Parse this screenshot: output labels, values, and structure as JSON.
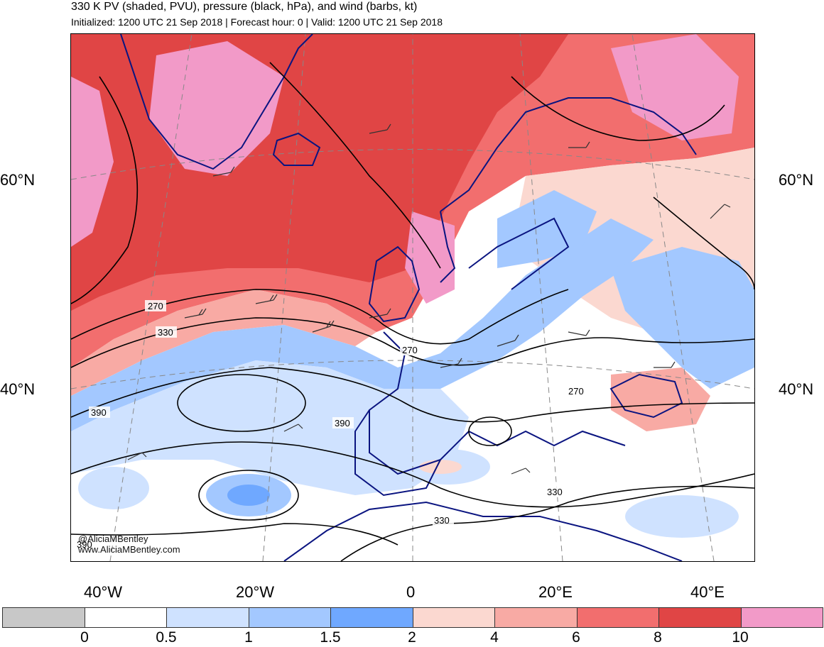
{
  "title": "330 K PV (shaded, PVU), pressure (black, hPa), and wind (barbs, kt)",
  "subtitle": "Initialized: 1200 UTC 21 Sep 2018 | Forecast hour: 0 | Valid: 1200 UTC 21 Sep 2018",
  "lat_labels": [
    "60°N",
    "40°N"
  ],
  "lon_labels": [
    "40°W",
    "20°W",
    "0",
    "20°E",
    "40°E"
  ],
  "contour_labels": [
    "270",
    "330",
    "270",
    "270",
    "390",
    "390",
    "390",
    "330",
    "330"
  ],
  "credit": {
    "twitter": "@AliciaMBentley",
    "website": "www.AliciaMBentley.com"
  },
  "colorbar": {
    "colors": [
      "#c8c8c8",
      "#ffffff",
      "#cfe2ff",
      "#a3c8ff",
      "#6fa8ff",
      "#fbd8d0",
      "#f8aaa4",
      "#f26e6e",
      "#e04545",
      "#f29ac8"
    ],
    "tick_labels": [
      "0",
      "0.5",
      "1",
      "1.5",
      "2",
      "4",
      "6",
      "8",
      "10"
    ]
  },
  "map_colors": {
    "ocean": "#ffffff",
    "pv_very_high": "#e04545",
    "pv_high": "#f26e6e",
    "pv_mid": "#f8aaa4",
    "pv_low": "#fbd8d0",
    "pv_top": "#f29ac8",
    "pv_light_blue": "#cfe2ff",
    "pv_blue": "#a3c8ff",
    "pv_dark_blue": "#6fa8ff",
    "coast": "#0a1480",
    "contour": "#000000",
    "grid": "#888888"
  }
}
